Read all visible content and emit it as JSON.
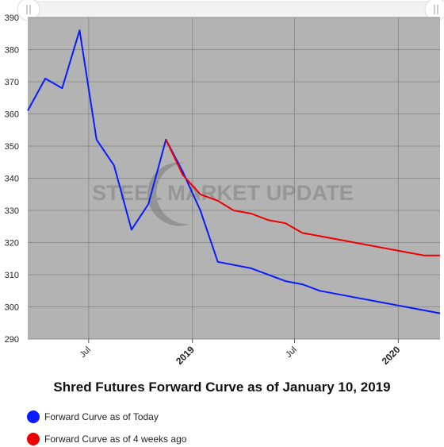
{
  "chart_data": {
    "type": "line",
    "title": "Shred Futures Forward Curve as of January 10, 2019",
    "xlabel": "",
    "ylabel": "",
    "ylim": [
      290,
      390
    ],
    "y_ticks": [
      290,
      300,
      310,
      320,
      330,
      340,
      350,
      360,
      370,
      380,
      390
    ],
    "x_range": [
      "2018-03-15",
      "2020-03-15"
    ],
    "x_ticks": [
      {
        "label": "Jul",
        "date": "2018-07-01",
        "bold": false
      },
      {
        "label": "2019",
        "date": "2019-01-01",
        "bold": true
      },
      {
        "label": "Jul",
        "date": "2019-07-01",
        "bold": false
      },
      {
        "label": "2020",
        "date": "2020-01-01",
        "bold": true
      }
    ],
    "grid": true,
    "legend_position": "bottom-left",
    "watermark": "STEEL MARKET UPDATE",
    "series": [
      {
        "name": "Forward Curve as of Today",
        "color": "#0a1cff",
        "points": [
          {
            "x": "2018-03-15",
            "y": 361
          },
          {
            "x": "2018-04-15",
            "y": 371
          },
          {
            "x": "2018-05-15",
            "y": 368
          },
          {
            "x": "2018-06-15",
            "y": 386
          },
          {
            "x": "2018-07-15",
            "y": 352
          },
          {
            "x": "2018-08-15",
            "y": 344
          },
          {
            "x": "2018-09-15",
            "y": 324
          },
          {
            "x": "2018-10-15",
            "y": 332
          },
          {
            "x": "2018-11-15",
            "y": 352
          },
          {
            "x": "2018-12-15",
            "y": 342
          },
          {
            "x": "2019-01-15",
            "y": 330
          },
          {
            "x": "2019-02-15",
            "y": 314
          },
          {
            "x": "2019-04-15",
            "y": 312
          },
          {
            "x": "2019-06-15",
            "y": 308
          },
          {
            "x": "2019-07-15",
            "y": 307
          },
          {
            "x": "2019-08-15",
            "y": 305
          },
          {
            "x": "2020-03-15",
            "y": 298
          }
        ]
      },
      {
        "name": "Forward Curve as of 4 weeks ago",
        "color": "#ee0000",
        "points": [
          {
            "x": "2018-11-15",
            "y": 352
          },
          {
            "x": "2018-12-15",
            "y": 341
          },
          {
            "x": "2019-01-15",
            "y": 335
          },
          {
            "x": "2019-02-15",
            "y": 333
          },
          {
            "x": "2019-03-15",
            "y": 330
          },
          {
            "x": "2019-04-15",
            "y": 329
          },
          {
            "x": "2019-05-15",
            "y": 327
          },
          {
            "x": "2019-06-15",
            "y": 326
          },
          {
            "x": "2019-07-15",
            "y": 323
          },
          {
            "x": "2019-08-15",
            "y": 322
          },
          {
            "x": "2020-02-15",
            "y": 316
          },
          {
            "x": "2020-03-15",
            "y": 316
          }
        ]
      }
    ]
  },
  "icons": {
    "scroll_handle_left": "grip-handle-icon",
    "scroll_handle_right": "grip-handle-icon"
  },
  "colors": {
    "plot_background": "#b3b3b3",
    "grid": "#8e8e8e"
  }
}
